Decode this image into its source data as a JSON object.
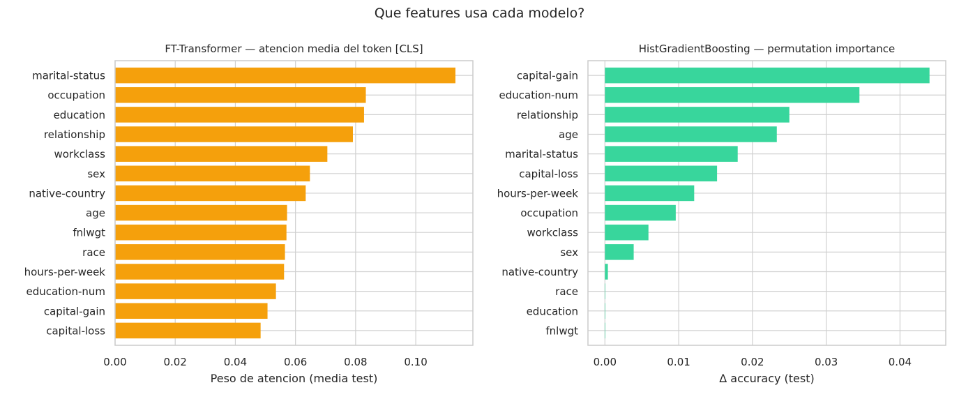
{
  "figure": {
    "title": "Que features usa cada modelo?"
  },
  "chart_data": [
    {
      "type": "bar",
      "orientation": "horizontal",
      "title": "FT-Transformer — atencion media del token [CLS]",
      "xlabel": "Peso de atencion (media test)",
      "ylabel": "",
      "xlim": [
        0,
        0.119
      ],
      "xticks": [
        "0.00",
        "0.02",
        "0.04",
        "0.06",
        "0.08",
        "0.10"
      ],
      "color": "#f5a00c",
      "grid": true,
      "categories": [
        "marital-status",
        "occupation",
        "education",
        "relationship",
        "workclass",
        "sex",
        "native-country",
        "age",
        "fnlwgt",
        "race",
        "hours-per-week",
        "education-num",
        "capital-gain",
        "capital-loss"
      ],
      "values": [
        0.1132,
        0.0834,
        0.0828,
        0.0791,
        0.0706,
        0.0648,
        0.0634,
        0.0572,
        0.057,
        0.0565,
        0.0562,
        0.0535,
        0.0507,
        0.0484
      ]
    },
    {
      "type": "bar",
      "orientation": "horizontal",
      "title": "HistGradientBoosting — permutation importance",
      "xlabel": "Δ accuracy (test)",
      "ylabel": "",
      "xlim": [
        -0.0023,
        0.0462
      ],
      "xticks": [
        "0.00",
        "0.01",
        "0.02",
        "0.03",
        "0.04"
      ],
      "color": "#38d69c",
      "grid": true,
      "categories": [
        "capital-gain",
        "education-num",
        "relationship",
        "age",
        "marital-status",
        "capital-loss",
        "hours-per-week",
        "occupation",
        "workclass",
        "sex",
        "native-country",
        "race",
        "education",
        "fnlwgt"
      ],
      "values": [
        0.044,
        0.0345,
        0.025,
        0.0233,
        0.018,
        0.0152,
        0.0121,
        0.0096,
        0.0059,
        0.0039,
        0.0004,
        0.0,
        0.0,
        0.0
      ]
    }
  ]
}
